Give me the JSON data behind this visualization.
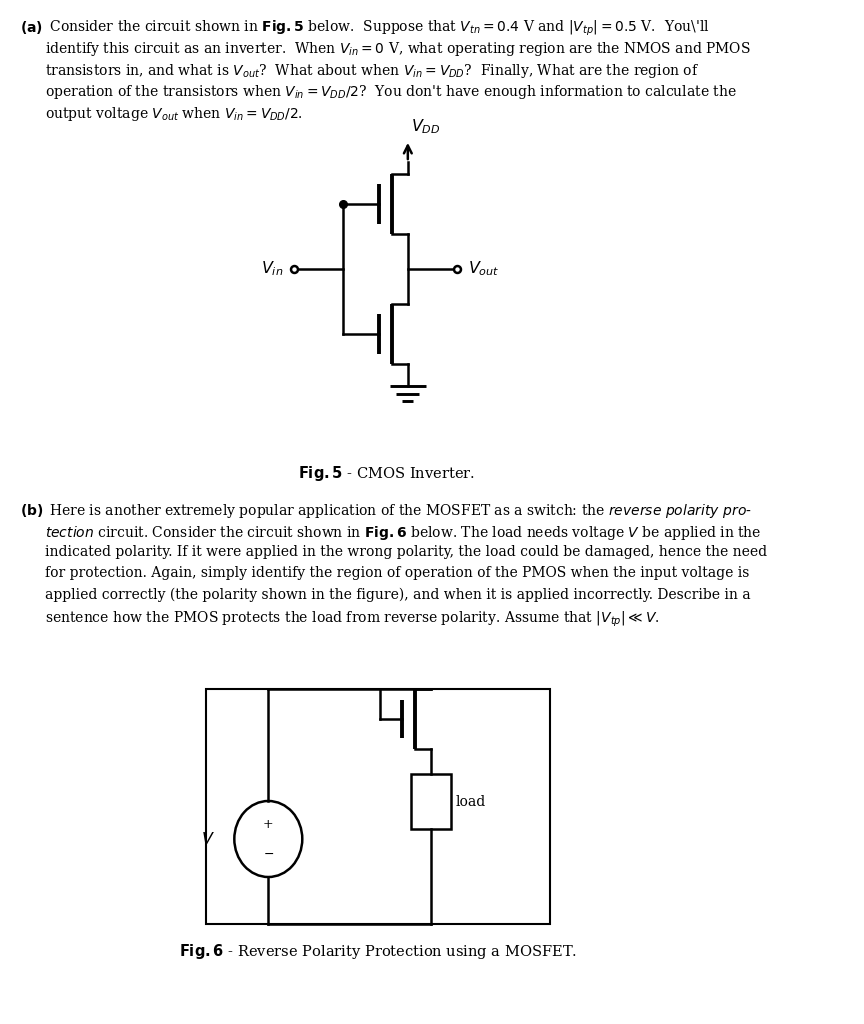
{
  "bg_color": "#ffffff",
  "page_width": 8.64,
  "page_height": 10.24,
  "lw": 1.5,
  "text_fontsize": 10.0,
  "fig_caption_fontsize": 10.5,
  "circuit_lw": 1.8,
  "part_a_lines": [
    [
      "(a)",
      " Consider the circuit shown in ",
      "Fig.5",
      " below.  Suppose that $V_{tn} = 0.4$ V and $|V_{tp}| = 0.5$ V.  You'll"
    ],
    [
      "",
      "identify this circuit as an inverter.  When $V_{in} = 0$ V, what operating region are the NMOS and PMOS",
      "",
      ""
    ],
    [
      "",
      "transistors in, and what is $V_{out}$?  What about when $V_{in} = V_{DD}$?  Finally, What are the region of",
      "",
      ""
    ],
    [
      "",
      "operation of the transistors when $V_{in} = V_{DD}/2$?  You don't have enough information to calculate the",
      "",
      ""
    ],
    [
      "",
      "output voltage $V_{out}$ when $V_{in} = V_{DD}/2$.",
      "",
      ""
    ]
  ],
  "part_b_lines": [
    [
      "(b)",
      " Here is another extremely popular application of the MOSFET as a switch: the ",
      "reverse polarity pro-",
      ""
    ],
    [
      "",
      "tection",
      " circuit. Consider the circuit shown in ",
      "Fig.6",
      " below. The load needs voltage $V$ be applied in the"
    ],
    [
      "",
      "indicated polarity. If it were applied in the wrong polarity, the load could be damaged, hence the need",
      "",
      ""
    ],
    [
      "",
      "for protection. Again, simply identify the region of operation of the PMOS when the input voltage is",
      "",
      ""
    ],
    [
      "",
      "applied correctly (the polarity shown in the figure), and when it is applied incorrectly. Describe in a",
      "",
      ""
    ],
    [
      "",
      "sentence how the PMOS protects the load from reverse polarity. Assume that $|V_{tp}| \\ll V$.",
      "",
      ""
    ]
  ]
}
